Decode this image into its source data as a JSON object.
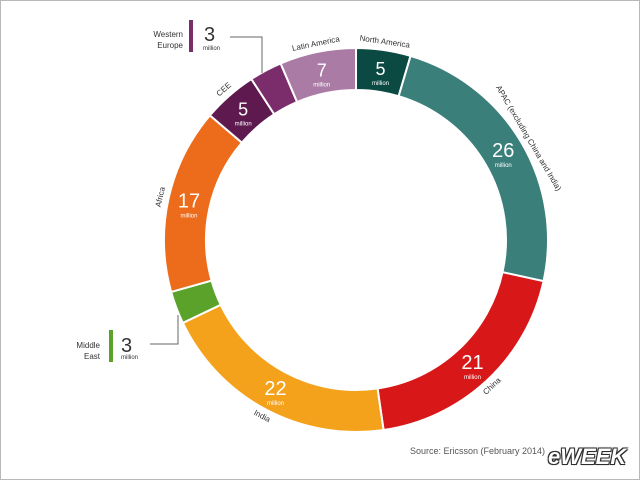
{
  "chart_data": {
    "type": "pie",
    "style": "donut",
    "unit_label": "million",
    "slices": [
      {
        "label": "North America",
        "value": 5,
        "color": "#0b4a43"
      },
      {
        "label": "APAC (excluding China and India)",
        "value": 26,
        "color": "#3b7f7b"
      },
      {
        "label": "China",
        "value": 21,
        "color": "#d81818"
      },
      {
        "label": "India",
        "value": 22,
        "color": "#f4a21c"
      },
      {
        "label": "Middle East",
        "value": 3,
        "color": "#5aa22a"
      },
      {
        "label": "Africa",
        "value": 17,
        "color": "#ec6c1c"
      },
      {
        "label": "CEE",
        "value": 5,
        "color": "#5e1a4f"
      },
      {
        "label": "Western Europe",
        "value": 3,
        "color": "#7b2d6b"
      },
      {
        "label": "Latin America",
        "value": 7,
        "color": "#a97ba5"
      }
    ]
  },
  "callouts": {
    "western_europe": {
      "name_line1": "Western",
      "name_line2": "Europe",
      "value": "3",
      "unit": "million"
    },
    "middle_east": {
      "name_line1": "Middle",
      "name_line2": "East",
      "value": "3",
      "unit": "million"
    }
  },
  "footer": {
    "source": "Source: Ericsson (February 2014)",
    "logo": "eWEEK"
  }
}
